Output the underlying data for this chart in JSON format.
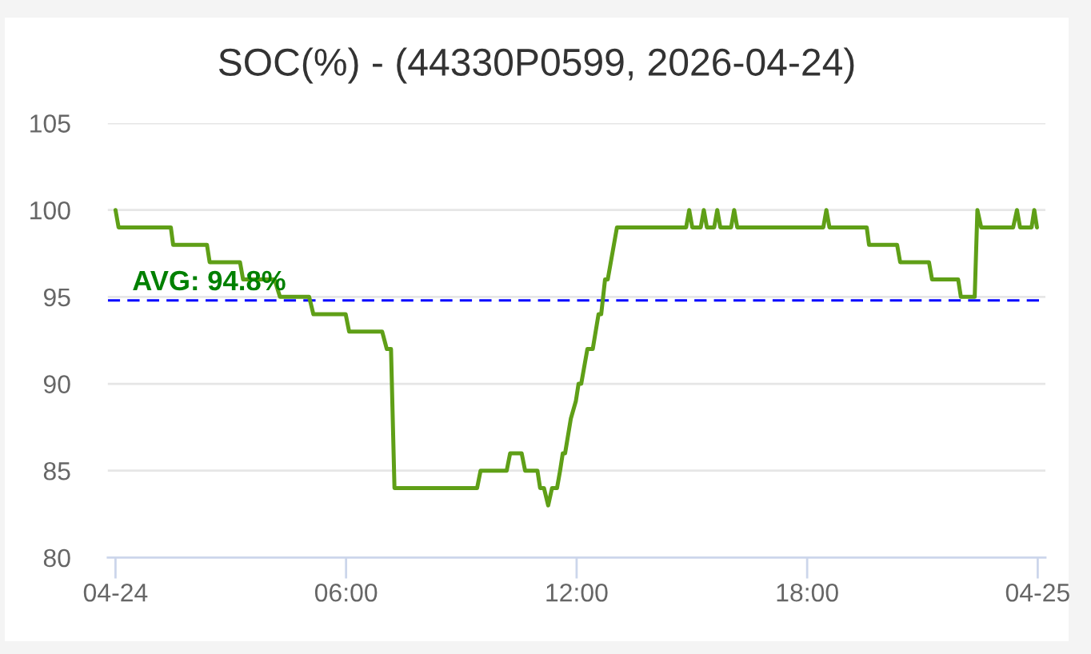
{
  "chart_data": {
    "type": "line",
    "title": "SOC(%) - (44330P0599, 2026-04-24)",
    "x": [
      0,
      0.08,
      1.44,
      1.5,
      2.38,
      2.45,
      3.24,
      3.32,
      4.14,
      4.28,
      5.04,
      5.15,
      5.99,
      6.08,
      6.94,
      7.06,
      7.17,
      7.26,
      9.41,
      9.5,
      10.18,
      10.27,
      10.57,
      10.66,
      10.98,
      11.05,
      11.15,
      11.26,
      11.36,
      11.49,
      11.57,
      11.64,
      11.7,
      11.85,
      11.98,
      12.05,
      12.12,
      12.28,
      12.42,
      12.57,
      12.64,
      12.74,
      12.81,
      13.05,
      14.85,
      14.93,
      15.01,
      15.23,
      15.31,
      15.39,
      15.58,
      15.66,
      15.74,
      16.02,
      16.1,
      16.18,
      18.42,
      18.5,
      18.58,
      19.55,
      19.61,
      20.34,
      20.42,
      21.17,
      21.25,
      21.93,
      22.0,
      22.36,
      22.43,
      22.53,
      23.36,
      23.46,
      23.54,
      23.84,
      23.91,
      23.98
    ],
    "series": [
      {
        "color": "#5f9f17",
        "values": [
          100,
          99,
          99,
          98,
          98,
          97,
          97,
          96,
          96,
          95,
          95,
          94,
          94,
          93,
          93,
          92,
          92,
          84,
          84,
          85,
          85,
          86,
          86,
          85,
          85,
          84,
          84,
          83,
          84,
          84,
          85,
          86,
          86,
          88,
          89,
          90,
          90,
          92,
          92,
          94,
          94,
          96,
          96,
          99,
          99,
          100,
          99,
          99,
          100,
          99,
          99,
          100,
          99,
          99,
          100,
          99,
          99,
          100,
          99,
          99,
          98,
          98,
          97,
          97,
          96,
          96,
          95,
          95,
          100,
          99,
          99,
          100,
          99,
          99,
          100,
          99
        ]
      }
    ],
    "xlim": [
      -0.2,
      24.2
    ],
    "xticks": [
      {
        "value": 0,
        "label": "04-24"
      },
      {
        "value": 6,
        "label": "06:00"
      },
      {
        "value": 12,
        "label": "12:00"
      },
      {
        "value": 18,
        "label": "18:00"
      },
      {
        "value": 24,
        "label": "04-25"
      }
    ],
    "ylim": [
      80,
      105
    ],
    "yticks": [
      80,
      85,
      90,
      95,
      100,
      105
    ],
    "grid": "y",
    "line_style": "solid",
    "ref_lines": [
      {
        "axis": "y",
        "value": 94.8,
        "label": "AVG: 94.8%",
        "color": "#0000ff",
        "line_style": "dashed"
      }
    ]
  }
}
